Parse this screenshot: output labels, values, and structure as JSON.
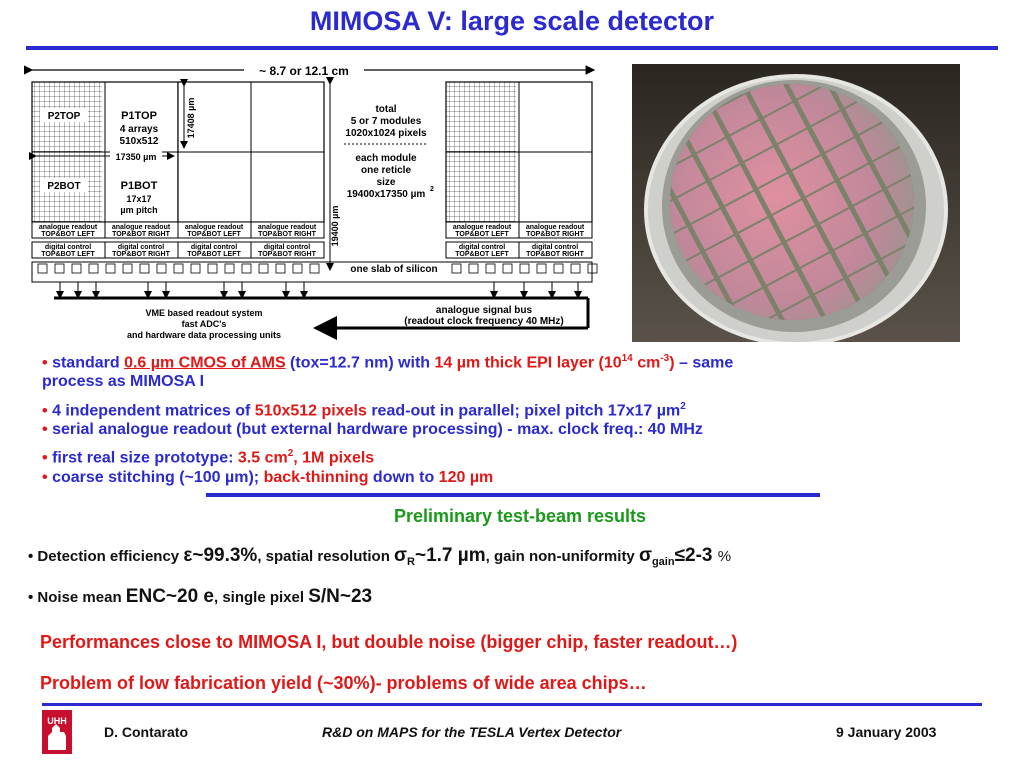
{
  "title": "MIMOSA V: large scale detector",
  "diagram": {
    "width_label": "~ 8.7 or 12.1 cm",
    "p2top": "P2TOP",
    "p1top": "P1TOP",
    "arrays": "4 arrays",
    "pixels": "510x512",
    "width_um": "17350 µm",
    "p2bot": "P2BOT",
    "p1bot": "P1BOT",
    "pitch1": "17x17",
    "pitch2": "µm pitch",
    "height1": "17408 µm",
    "height2": "19400 µm",
    "total": [
      "total",
      "5 or 7 modules",
      "1020x1024 pixels"
    ],
    "module": [
      "each module",
      "one reticle",
      "size",
      "19400x17350 µm"
    ],
    "module_exp": "2",
    "analogue": [
      "analogue readout",
      "TOP&BOT LEFT"
    ],
    "analogue_right": "TOP&BOT RIGHT",
    "digital": [
      "digital control",
      "TOP&BOT LEFT"
    ],
    "digital_right": "TOP&BOT RIGHT",
    "slab": "one slab of silicon",
    "vme": [
      "VME based readout system",
      "fast ADC's",
      "and hardware data processing units"
    ],
    "bus": [
      "analogue signal bus",
      "(readout clock frequency 40 MHz)"
    ]
  },
  "bullets": {
    "b1": {
      "standard": "standard ",
      "tech": "0.6 µm CMOS of AMS",
      "tox": " (tox=12.7 nm) with ",
      "epi": "14 µm thick EPI layer (10",
      "exp1": "14",
      "cm": " cm",
      "exp2": "-3",
      "close": ")",
      "same": " – same",
      "line2": "process as MIMOSA I"
    },
    "b2": {
      "a": "4 independent matrices of ",
      "b": "510x512 pixels",
      "c": " read-out in parallel; pixel pitch 17x17 µm",
      "exp": "2"
    },
    "b3": "serial analogue readout (but external hardware processing) - max. clock freq.: 40 MHz",
    "b4": {
      "a": "first real size prototype: ",
      "b": "3.5 cm",
      "exp": "2",
      "c": ", 1M pixels"
    },
    "b5": {
      "a": "coarse stitching (~100 µm); ",
      "b": "back-thinning",
      "c": " down to ",
      "d": "120 µm"
    }
  },
  "results_title": "Preliminary test-beam results",
  "results": {
    "r1": {
      "a": "Detection efficiency ",
      "eps": "ε",
      "b": "~99.3%",
      "c": ", spatial resolution ",
      "sigma": "σ",
      "sub_r": "R",
      "d": "~1.7 ",
      "mu": "µm",
      "e": ", gain non-uniformity ",
      "sigma2": "σ",
      "sub_gain": "gain",
      "f": "≤2-3 ",
      "pct": "%"
    },
    "r2": {
      "a": "Noise mean ",
      "b": "ENC~20 e",
      "c": ", single pixel ",
      "d": "S/N~23"
    }
  },
  "conclusions": [
    "Performances close to MIMOSA I, but double noise (bigger chip, faster readout…)",
    "Problem of low fabrication yield (~30%)- problems of wide area chips…"
  ],
  "footer": {
    "logo_text": "UHH",
    "author": "D. Contarato",
    "talk": "R&D on MAPS for the TESLA Vertex Detector",
    "date": "9 January 2003"
  },
  "colors": {
    "title_blue": "#2a2ad0",
    "red": "#e01818",
    "green": "#1a9a1a"
  }
}
